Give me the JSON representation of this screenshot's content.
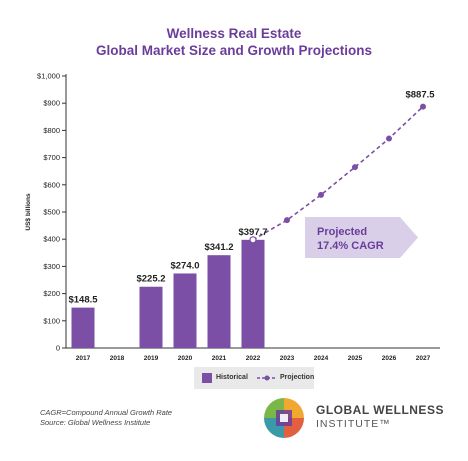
{
  "chart_data": {
    "type": "bar",
    "title": "Wellness Real Estate",
    "subtitle": "Global Market Size and Growth Projections",
    "ylabel": "US$ billions",
    "xlabel": "",
    "ylim": [
      0,
      1000
    ],
    "yticks": [
      "0",
      "$100",
      "$200",
      "$300",
      "$400",
      "$500",
      "$600",
      "$700",
      "$800",
      "$900",
      "$1,000"
    ],
    "categories": [
      "2017",
      "2018",
      "2019",
      "2020",
      "2021",
      "2022",
      "2023",
      "2024",
      "2025",
      "2026",
      "2027"
    ],
    "series": [
      {
        "name": "Historical",
        "type": "bar",
        "color": "#7b4fa6",
        "points": [
          {
            "x": "2017",
            "y": 148.5,
            "label": "$148.5"
          },
          {
            "x": "2019",
            "y": 225.2,
            "label": "$225.2"
          },
          {
            "x": "2020",
            "y": 274.0,
            "label": "$274.0"
          },
          {
            "x": "2021",
            "y": 341.2,
            "label": "$341.2"
          },
          {
            "x": "2022",
            "y": 397.7,
            "label": "$397.7"
          }
        ]
      },
      {
        "name": "Projection",
        "type": "line",
        "style": "dashed",
        "color": "#7b4fa6",
        "points": [
          {
            "x": "2022",
            "y": 397.7
          },
          {
            "x": "2023",
            "y": 470
          },
          {
            "x": "2024",
            "y": 563
          },
          {
            "x": "2025",
            "y": 665
          },
          {
            "x": "2026",
            "y": 770
          },
          {
            "x": "2027",
            "y": 887.5,
            "label": "$887.5"
          }
        ]
      }
    ],
    "annotation": {
      "line1": "Projected",
      "line2": "17.4% CAGR",
      "color": "#d9cfe8",
      "text_color": "#6a3d9a"
    },
    "grid": false,
    "legend_position": "bottom-center"
  },
  "footnotes": [
    "CAGR=Compound Annual Growth Rate",
    "Source: Global Wellness Institute"
  ],
  "logo": {
    "line1": "GLOBAL WELLNESS",
    "line2": "INSTITUTE™"
  }
}
